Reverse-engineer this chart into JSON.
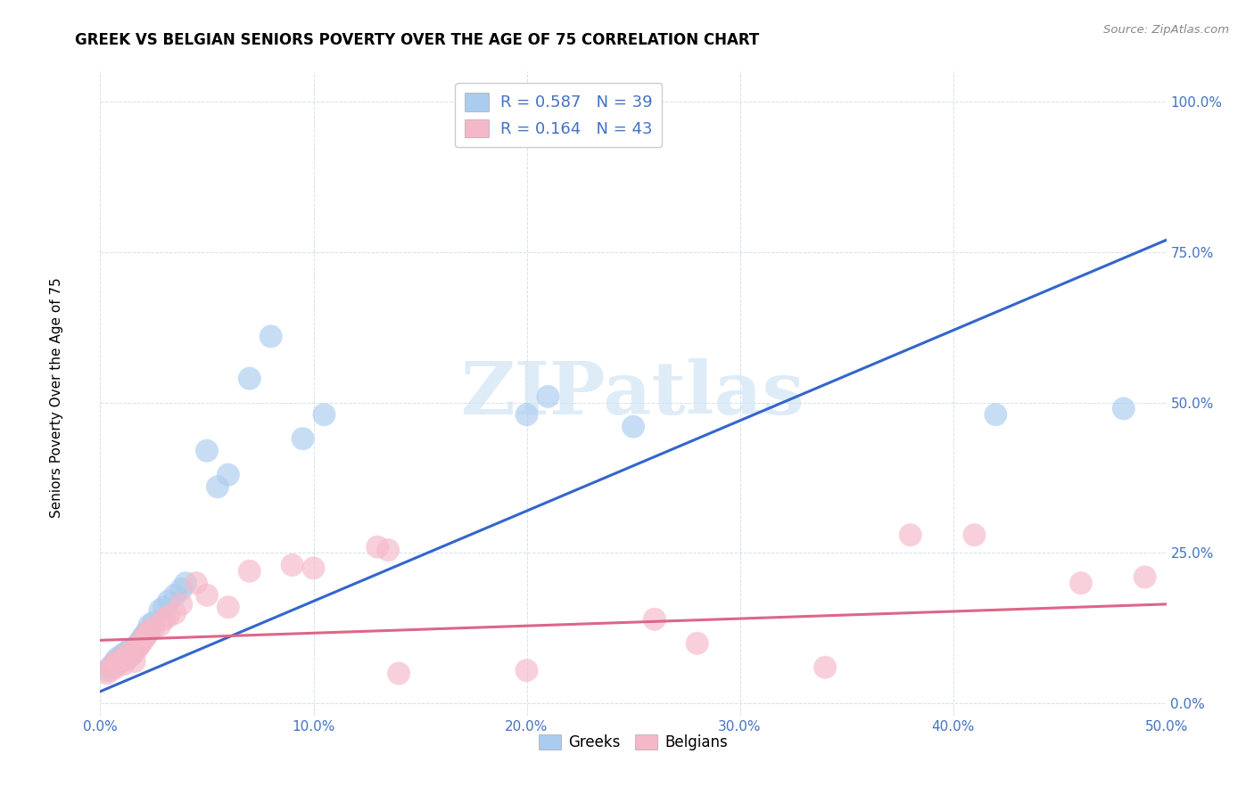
{
  "title": "GREEK VS BELGIAN SENIORS POVERTY OVER THE AGE OF 75 CORRELATION CHART",
  "source": "Source: ZipAtlas.com",
  "ylabel": "Seniors Poverty Over the Age of 75",
  "xlim": [
    0.0,
    0.5
  ],
  "ylim": [
    -0.02,
    1.05
  ],
  "xticks": [
    0.0,
    0.1,
    0.2,
    0.3,
    0.4,
    0.5
  ],
  "yticks": [
    0.0,
    0.25,
    0.5,
    0.75,
    1.0
  ],
  "xtick_labels": [
    "0.0%",
    "10.0%",
    "20.0%",
    "30.0%",
    "40.0%",
    "50.0%"
  ],
  "ytick_labels": [
    "0.0%",
    "25.0%",
    "50.0%",
    "75.0%",
    "100.0%"
  ],
  "greek_color": "#aaccee",
  "belgian_color": "#f5b8c8",
  "trend_greek_color": "#3366cc",
  "trend_belgian_color": "#dd6688",
  "watermark_color": "#d0e4f4",
  "greek_x": [
    0.003,
    0.005,
    0.006,
    0.007,
    0.008,
    0.009,
    0.01,
    0.011,
    0.012,
    0.013,
    0.014,
    0.015,
    0.016,
    0.017,
    0.018,
    0.019,
    0.02,
    0.021,
    0.022,
    0.023,
    0.025,
    0.028,
    0.03,
    0.032,
    0.035,
    0.038,
    0.04,
    0.05,
    0.055,
    0.06,
    0.07,
    0.08,
    0.095,
    0.105,
    0.2,
    0.21,
    0.25,
    0.42,
    0.48
  ],
  "greek_y": [
    0.055,
    0.06,
    0.065,
    0.07,
    0.075,
    0.068,
    0.08,
    0.072,
    0.085,
    0.078,
    0.09,
    0.082,
    0.088,
    0.095,
    0.1,
    0.105,
    0.11,
    0.115,
    0.12,
    0.13,
    0.135,
    0.155,
    0.16,
    0.17,
    0.18,
    0.19,
    0.2,
    0.42,
    0.36,
    0.38,
    0.54,
    0.61,
    0.44,
    0.48,
    0.48,
    0.51,
    0.46,
    0.48,
    0.49
  ],
  "belgian_x": [
    0.003,
    0.005,
    0.006,
    0.007,
    0.008,
    0.009,
    0.01,
    0.011,
    0.012,
    0.013,
    0.014,
    0.015,
    0.016,
    0.017,
    0.018,
    0.019,
    0.02,
    0.021,
    0.022,
    0.023,
    0.025,
    0.028,
    0.03,
    0.032,
    0.035,
    0.038,
    0.045,
    0.05,
    0.06,
    0.07,
    0.09,
    0.1,
    0.13,
    0.135,
    0.14,
    0.2,
    0.26,
    0.28,
    0.34,
    0.38,
    0.41,
    0.46,
    0.49
  ],
  "belgian_y": [
    0.05,
    0.055,
    0.065,
    0.06,
    0.07,
    0.068,
    0.072,
    0.065,
    0.08,
    0.075,
    0.085,
    0.082,
    0.07,
    0.09,
    0.095,
    0.1,
    0.105,
    0.11,
    0.115,
    0.12,
    0.125,
    0.13,
    0.14,
    0.145,
    0.15,
    0.165,
    0.2,
    0.18,
    0.16,
    0.22,
    0.23,
    0.225,
    0.26,
    0.255,
    0.05,
    0.055,
    0.14,
    0.1,
    0.06,
    0.28,
    0.28,
    0.2,
    0.21
  ],
  "greek_trendline_x": [
    0.0,
    0.5
  ],
  "greek_trendline_y": [
    0.02,
    0.77
  ],
  "belgian_trendline_x": [
    0.0,
    0.5
  ],
  "belgian_trendline_y": [
    0.105,
    0.165
  ],
  "legend_text_greek": "R = 0.587   N = 39",
  "legend_text_belgian": "R = 0.164   N = 43",
  "bottom_legend_greek": "Greeks",
  "bottom_legend_belgian": "Belgians"
}
